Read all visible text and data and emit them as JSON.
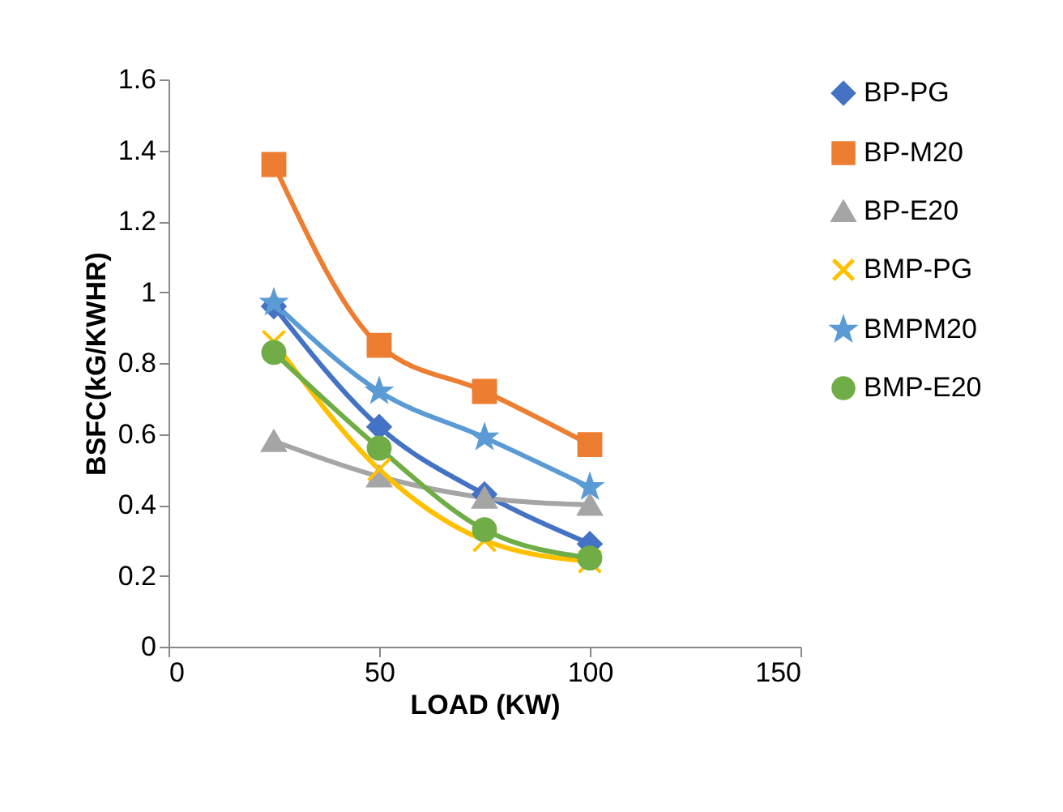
{
  "chart_data": {
    "type": "line",
    "xlabel": "LOAD (KW)",
    "ylabel": "BSFC(kG/KWHR)",
    "x": [
      25,
      50,
      75,
      100
    ],
    "series": [
      {
        "name": "BP-PG",
        "color": "#4472c4",
        "marker": "diamond",
        "values": [
          0.96,
          0.62,
          0.43,
          0.29
        ]
      },
      {
        "name": "BP-M20",
        "color": "#ed7d31",
        "marker": "square",
        "values": [
          1.36,
          0.85,
          0.72,
          0.57
        ]
      },
      {
        "name": "BP-E20",
        "color": "#a5a5a5",
        "marker": "triangle",
        "values": [
          0.58,
          0.48,
          0.42,
          0.4
        ]
      },
      {
        "name": "BMP-PG",
        "color": "#ffc000",
        "marker": "cross",
        "values": [
          0.86,
          0.5,
          0.3,
          0.24
        ]
      },
      {
        "name": "BMPM20",
        "color": "#5b9bd5",
        "marker": "star",
        "values": [
          0.97,
          0.72,
          0.59,
          0.45
        ]
      },
      {
        "name": "BMP-E20",
        "color": "#70ad47",
        "marker": "circle",
        "values": [
          0.83,
          0.56,
          0.33,
          0.25
        ]
      }
    ],
    "xlim": [
      0,
      150
    ],
    "xticks": [
      0,
      50,
      100,
      150
    ],
    "ylim": [
      0,
      1.6
    ],
    "yticks": [
      0,
      0.2,
      0.4,
      0.6,
      0.8,
      1,
      1.2,
      1.4,
      1.6
    ],
    "grid": false,
    "legend": "right"
  }
}
